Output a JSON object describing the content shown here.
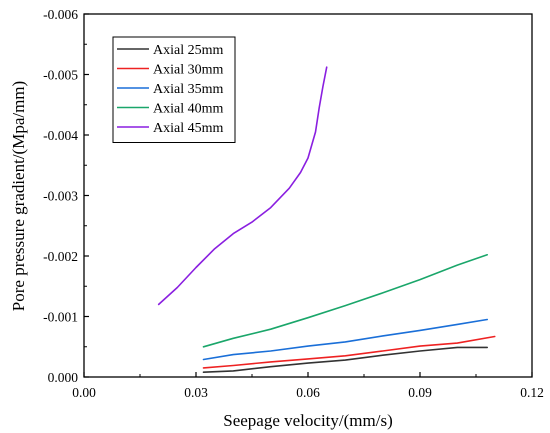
{
  "chart_data": {
    "type": "line",
    "title": "",
    "xlabel": "Seepage velocity/(mm/s)",
    "ylabel": "Pore pressure gradient/(Mpa/mm)",
    "xlim": [
      0.0,
      0.12
    ],
    "ylim": [
      0.0,
      -0.006
    ],
    "x_ticks": [
      0.0,
      0.03,
      0.06,
      0.09,
      0.12
    ],
    "x_tick_labels": [
      "0.00",
      "0.03",
      "0.06",
      "0.09",
      "0.12"
    ],
    "y_ticks": [
      0.0,
      -0.001,
      -0.002,
      -0.003,
      -0.004,
      -0.005,
      -0.006
    ],
    "y_tick_labels": [
      "0.000",
      "-0.001",
      "-0.002",
      "-0.003",
      "-0.004",
      "-0.005",
      "-0.006"
    ],
    "grid": false,
    "legend_position": "top-left",
    "series": [
      {
        "name": "Axial 25mm",
        "color": "#333333",
        "x": [
          0.032,
          0.04,
          0.05,
          0.06,
          0.07,
          0.08,
          0.09,
          0.1,
          0.108
        ],
        "y": [
          -8e-05,
          -0.0001,
          -0.00017,
          -0.00023,
          -0.00028,
          -0.00036,
          -0.00043,
          -0.00049,
          -0.00049
        ]
      },
      {
        "name": "Axial 30mm",
        "color": "#ee2222",
        "x": [
          0.032,
          0.04,
          0.05,
          0.06,
          0.07,
          0.08,
          0.09,
          0.1,
          0.11
        ],
        "y": [
          -0.00015,
          -0.00019,
          -0.00025,
          -0.0003,
          -0.00035,
          -0.00043,
          -0.00051,
          -0.00056,
          -0.00067
        ]
      },
      {
        "name": "Axial 35mm",
        "color": "#1a6fd8",
        "x": [
          0.032,
          0.04,
          0.05,
          0.06,
          0.07,
          0.08,
          0.09,
          0.1,
          0.108
        ],
        "y": [
          -0.00029,
          -0.00037,
          -0.00043,
          -0.00051,
          -0.00058,
          -0.00068,
          -0.00077,
          -0.00087,
          -0.00095
        ]
      },
      {
        "name": "Axial 40mm",
        "color": "#1aa66a",
        "x": [
          0.032,
          0.04,
          0.05,
          0.06,
          0.07,
          0.08,
          0.09,
          0.1,
          0.108
        ],
        "y": [
          -0.0005,
          -0.00064,
          -0.00079,
          -0.00098,
          -0.00118,
          -0.00139,
          -0.00161,
          -0.00185,
          -0.00202
        ]
      },
      {
        "name": "Axial 45mm",
        "color": "#8a1fe0",
        "x": [
          0.02,
          0.025,
          0.03,
          0.035,
          0.04,
          0.045,
          0.05,
          0.055,
          0.058,
          0.06,
          0.062,
          0.063,
          0.064,
          0.065
        ],
        "y": [
          -0.0012,
          -0.00148,
          -0.00181,
          -0.00212,
          -0.00237,
          -0.00256,
          -0.0028,
          -0.00312,
          -0.00338,
          -0.00362,
          -0.00405,
          -0.00445,
          -0.0048,
          -0.00512
        ]
      }
    ]
  }
}
